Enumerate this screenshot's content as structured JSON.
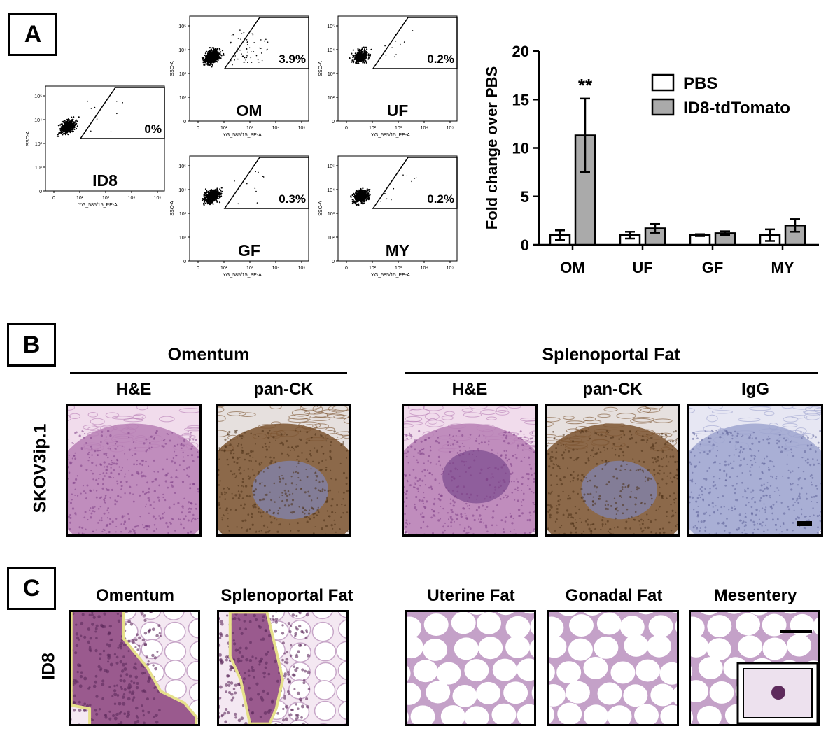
{
  "panels": {
    "a": "A",
    "b": "B",
    "c": "C"
  },
  "flow_plots": [
    {
      "id": "id8",
      "label": "ID8",
      "pct": "0%",
      "events": 350,
      "ylab": "SSC-A",
      "xlab": "YG_585/15_PE-A",
      "yticks": [
        "10⁵",
        "10⁴",
        "10³",
        "10²",
        "0"
      ],
      "xticks": [
        "0",
        "10²",
        "10³",
        "10⁴",
        "10⁵"
      ]
    },
    {
      "id": "om",
      "label": "OM",
      "pct": "3.9%",
      "events": 500,
      "ylab": "SSC-A",
      "xlab": "YG_585/15_PE-A",
      "yticks": [
        "10⁵",
        "10⁴",
        "10³",
        "10²",
        "0"
      ],
      "xticks": [
        "0",
        "10²",
        "10³",
        "10⁴",
        "10⁵"
      ]
    },
    {
      "id": "uf",
      "label": "UF",
      "pct": "0.2%",
      "events": 320,
      "ylab": "SSC-A",
      "xlab": "YG_585/15_PE-A",
      "yticks": [
        "10⁵",
        "10⁴",
        "10³",
        "10²",
        "0"
      ],
      "xticks": [
        "0",
        "10²",
        "10³",
        "10⁴",
        "10⁵"
      ]
    },
    {
      "id": "gf",
      "label": "GF",
      "pct": "0.3%",
      "events": 420,
      "ylab": "SSC-A",
      "xlab": "YG_585/15_PE-A",
      "yticks": [
        "10⁵",
        "10⁴",
        "10³",
        "10²",
        "0"
      ],
      "xticks": [
        "0",
        "10²",
        "10³",
        "10⁴",
        "10⁵"
      ]
    },
    {
      "id": "my",
      "label": "MY",
      "pct": "0.2%",
      "events": 420,
      "ylab": "SSC-A",
      "xlab": "YG_585/15_PE-A",
      "yticks": [
        "10⁵",
        "10⁴",
        "10³",
        "10²",
        "0"
      ],
      "xticks": [
        "0",
        "10²",
        "10³",
        "10⁴",
        "10⁵"
      ]
    }
  ],
  "chart_data": {
    "type": "bar",
    "categories": [
      "OM",
      "UF",
      "GF",
      "MY"
    ],
    "series": [
      {
        "name": "PBS",
        "values": [
          1.0,
          1.0,
          1.0,
          1.0
        ],
        "errors": [
          0.5,
          0.35,
          0.1,
          0.6
        ],
        "color": "#ffffff"
      },
      {
        "name": "ID8-tdTomato",
        "values": [
          11.3,
          1.7,
          1.2,
          2.0
        ],
        "errors": [
          3.8,
          0.45,
          0.2,
          0.65
        ],
        "color": "#aaaaaa"
      }
    ],
    "title": "",
    "xlabel": "",
    "ylabel": "Fold change over PBS",
    "ylim": [
      0,
      20
    ],
    "yticks": [
      0,
      5,
      10,
      15,
      20
    ],
    "annotations": [
      {
        "category": "OM",
        "series": "ID8-tdTomato",
        "text": "**"
      }
    ],
    "legend_position": "top-right",
    "grid": false
  },
  "panel_b": {
    "group1": "Omentum",
    "group2": "Splenoportal Fat",
    "row_label": "SKOV3ip.1",
    "images": [
      {
        "label": "H&E",
        "stain": "he"
      },
      {
        "label": "pan-CK",
        "stain": "ck"
      },
      {
        "label": "H&E",
        "stain": "he"
      },
      {
        "label": "pan-CK",
        "stain": "ck"
      },
      {
        "label": "IgG",
        "stain": "igg"
      }
    ]
  },
  "panel_c": {
    "row_label": "ID8",
    "images": [
      {
        "label": "Omentum",
        "tissue": "tumor"
      },
      {
        "label": "Splenoportal Fat",
        "tissue": "tumor"
      },
      {
        "label": "Uterine Fat",
        "tissue": "fat"
      },
      {
        "label": "Gonadal Fat",
        "tissue": "fat"
      },
      {
        "label": "Mesentery",
        "tissue": "fat"
      }
    ]
  },
  "colors": {
    "tumor_outline": "#e6e08a",
    "he_pink": "#c99bc4",
    "ck_brown": "#8a5a2b",
    "igg_blue": "#9ea4cf"
  }
}
